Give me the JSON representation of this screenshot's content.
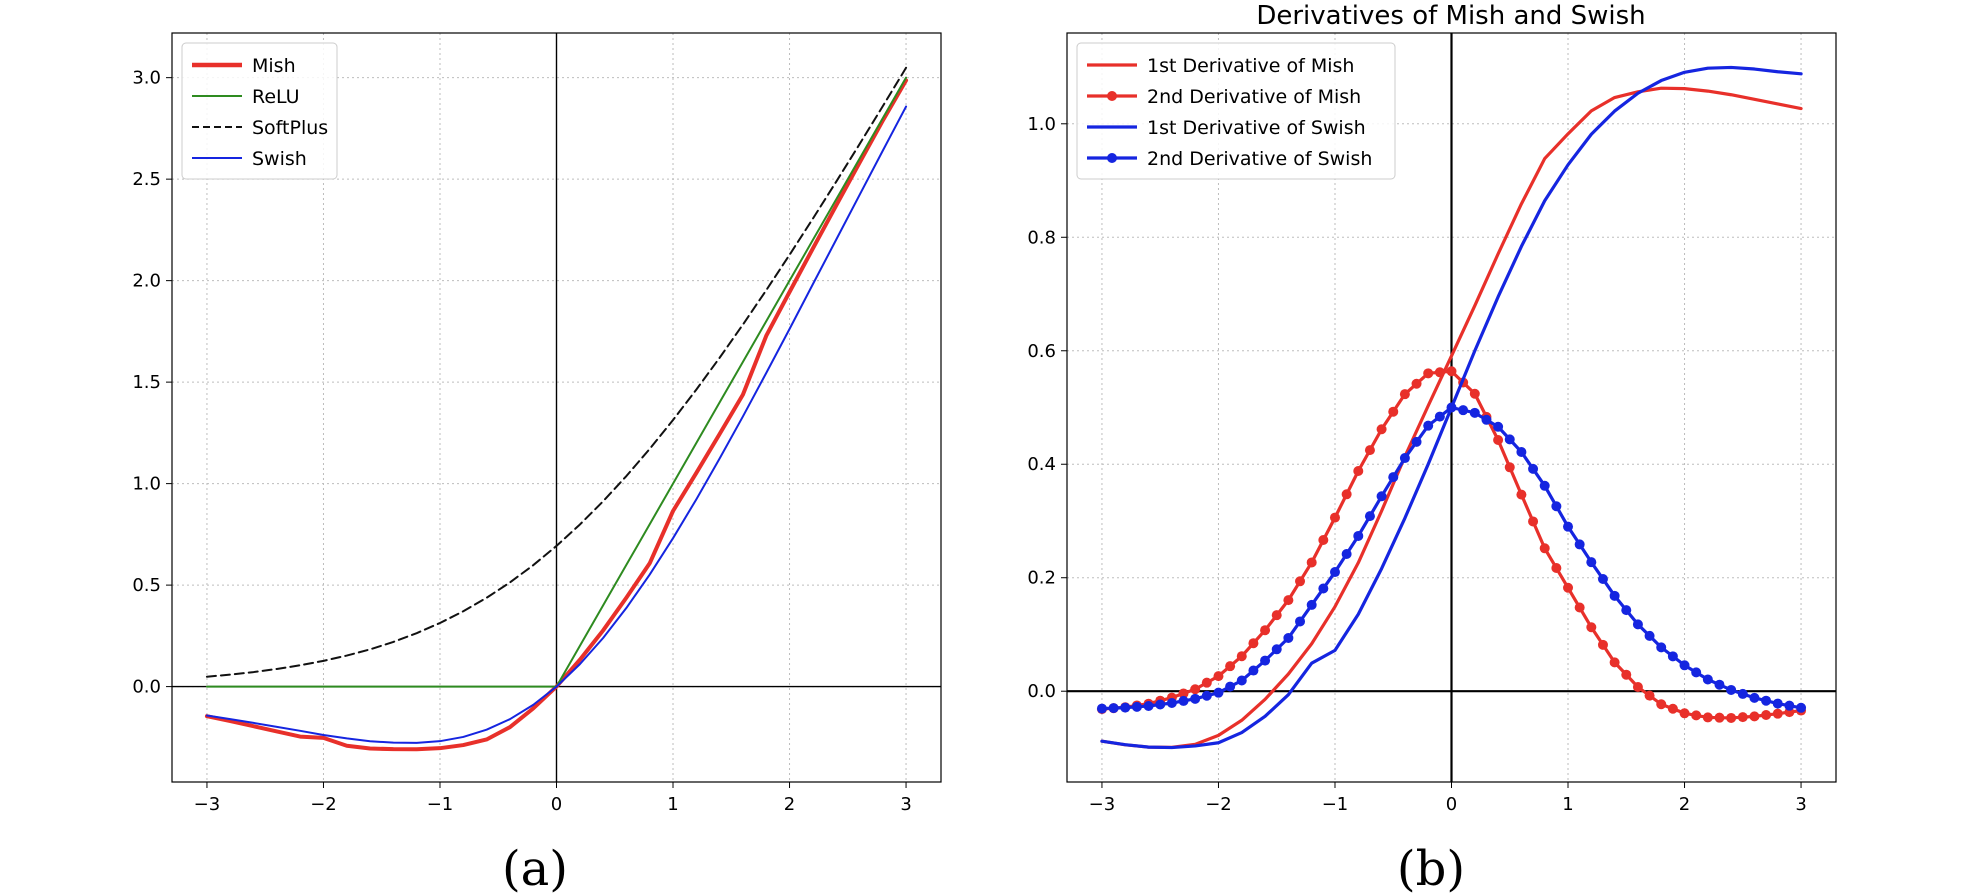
{
  "chart_data": [
    {
      "type": "line",
      "caption": "(a)",
      "title": "",
      "xlabel": "",
      "ylabel": "",
      "xlim": [
        -3.3,
        3.3
      ],
      "ylim": [
        -0.47,
        3.22
      ],
      "xticks": [
        -3,
        -2,
        -1,
        0,
        1,
        2,
        3
      ],
      "xtick_labels": [
        "−3",
        "−2",
        "−1",
        "0",
        "1",
        "2",
        "3"
      ],
      "yticks": [
        0.0,
        0.5,
        1.0,
        1.5,
        2.0,
        2.5,
        3.0
      ],
      "ytick_labels": [
        "0.0",
        "0.5",
        "1.0",
        "1.5",
        "2.0",
        "2.5",
        "3.0"
      ],
      "grid": true,
      "legend_position": "top-left",
      "x": [
        -3.0,
        -2.8,
        -2.6,
        -2.4,
        -2.2,
        -2.0,
        -1.8,
        -1.6,
        -1.4,
        -1.2,
        -1.0,
        -0.8,
        -0.6,
        -0.4,
        -0.2,
        0.0,
        0.2,
        0.4,
        0.6,
        0.8,
        1.0,
        1.2,
        1.4,
        1.6,
        1.8,
        2.0,
        2.2,
        2.4,
        2.6,
        2.8,
        3.0
      ],
      "series": [
        {
          "name": "Mish",
          "color": "#e8302a",
          "style": "solid",
          "weight": "thick",
          "values": [
            -0.1456,
            -0.1698,
            -0.1952,
            -0.221,
            -0.2462,
            -0.2525,
            -0.2914,
            -0.3049,
            -0.3083,
            -0.3088,
            -0.3034,
            -0.288,
            -0.2605,
            -0.1999,
            -0.1077,
            0.0,
            0.1317,
            0.2767,
            0.4384,
            0.6076,
            0.8651,
            1.0528,
            1.2444,
            1.4386,
            1.728,
            1.944,
            2.158,
            2.37,
            2.58,
            2.788,
            2.9865
          ]
        },
        {
          "name": "ReLU",
          "color": "#2e8b20",
          "style": "solid",
          "weight": "normal",
          "values": [
            0,
            0,
            0,
            0,
            0,
            0,
            0,
            0,
            0,
            0,
            0,
            0,
            0,
            0,
            0,
            0,
            0.2,
            0.4,
            0.6,
            0.8,
            1.0,
            1.2,
            1.4,
            1.6,
            1.8,
            2.0,
            2.2,
            2.4,
            2.6,
            2.8,
            3.0
          ]
        },
        {
          "name": "SoftPlus",
          "color": "#111111",
          "style": "dashed",
          "weight": "normal",
          "values": [
            0.0486,
            0.059,
            0.0716,
            0.0869,
            0.1051,
            0.1269,
            0.1528,
            0.1835,
            0.2201,
            0.2633,
            0.3133,
            0.3711,
            0.4375,
            0.513,
            0.5981,
            0.6931,
            0.7981,
            0.913,
            1.0375,
            1.1711,
            1.3133,
            1.4633,
            1.6201,
            1.7835,
            1.9528,
            2.1269,
            2.3051,
            2.4869,
            2.6716,
            2.859,
            3.0486
          ]
        },
        {
          "name": "Swish",
          "color": "#1525e0",
          "style": "solid",
          "weight": "normal",
          "values": [
            -0.1423,
            -0.1602,
            -0.1789,
            -0.1986,
            -0.2178,
            -0.2384,
            -0.2551,
            -0.269,
            -0.2762,
            -0.2775,
            -0.2689,
            -0.248,
            -0.2123,
            -0.1605,
            -0.09,
            0.0,
            0.11,
            0.2395,
            0.3877,
            0.552,
            0.7311,
            0.9225,
            1.1238,
            1.331,
            1.5449,
            1.7616,
            1.9822,
            2.2014,
            2.4211,
            2.6398,
            2.8577
          ]
        }
      ]
    },
    {
      "type": "line",
      "caption": "(b)",
      "title": "Derivatives of Mish and Swish",
      "xlabel": "",
      "ylabel": "",
      "xlim": [
        -3.3,
        3.3
      ],
      "ylim": [
        -0.16,
        1.16
      ],
      "xticks": [
        -3,
        -2,
        -1,
        0,
        1,
        2,
        3
      ],
      "xtick_labels": [
        "−3",
        "−2",
        "−1",
        "0",
        "1",
        "2",
        "3"
      ],
      "yticks": [
        0.0,
        0.2,
        0.4,
        0.6,
        0.8,
        1.0
      ],
      "ytick_labels": [
        "0.0",
        "0.2",
        "0.4",
        "0.6",
        "0.8",
        "1.0"
      ],
      "grid": true,
      "legend_position": "top-left",
      "x": [
        -3.0,
        -2.8,
        -2.6,
        -2.4,
        -2.2,
        -2.0,
        -1.8,
        -1.6,
        -1.4,
        -1.2,
        -1.0,
        -0.8,
        -0.6,
        -0.4,
        -0.2,
        0.0,
        0.2,
        0.4,
        0.6,
        0.8,
        1.0,
        1.2,
        1.4,
        1.6,
        1.8,
        2.0,
        2.2,
        2.4,
        2.6,
        2.8,
        3.0
      ],
      "series": [
        {
          "name": "1st Derivative of Mish",
          "color": "#e8302a",
          "markers": false,
          "values": [
            -0.0881,
            -0.0944,
            -0.0985,
            -0.099,
            -0.0936,
            -0.0778,
            -0.0512,
            -0.0143,
            0.0303,
            0.0836,
            0.149,
            0.2263,
            0.3176,
            0.4135,
            0.5031,
            0.5909,
            0.6795,
            0.7707,
            0.8589,
            0.9387,
            0.9823,
            1.0228,
            1.0463,
            1.0564,
            1.0627,
            1.062,
            1.0576,
            1.0512,
            1.0432,
            1.035,
            1.0269
          ]
        },
        {
          "name": "2nd Derivative of Mish",
          "color": "#e8302a",
          "markers": true,
          "values": [
            -0.0316,
            -0.0282,
            -0.022,
            -0.0114,
            0.0035,
            0.0266,
            0.0617,
            0.1075,
            0.1605,
            0.2269,
            0.306,
            0.3881,
            0.4617,
            0.5235,
            0.5602,
            0.5639,
            0.5242,
            0.4427,
            0.3465,
            0.2519,
            0.1823,
            0.1127,
            0.0508,
            0.0074,
            -0.023,
            -0.0389,
            -0.0462,
            -0.0471,
            -0.0443,
            -0.0396,
            -0.0341
          ]
        },
        {
          "name": "1st Derivative of Swish",
          "color": "#1525e0",
          "markers": false,
          "values": [
            -0.0881,
            -0.0942,
            -0.0985,
            -0.0993,
            -0.0964,
            -0.0908,
            -0.0729,
            -0.0443,
            -0.0061,
            0.0494,
            0.072,
            0.1357,
            0.2161,
            0.305,
            0.4001,
            0.5,
            0.5999,
            0.695,
            0.7839,
            0.8643,
            0.9277,
            0.9816,
            1.0224,
            1.0538,
            1.0762,
            1.0908,
            1.098,
            1.0993,
            1.0965,
            1.0917,
            1.0881
          ]
        },
        {
          "name": "2nd Derivative of Swish",
          "color": "#1525e0",
          "markers": true,
          "values": [
            -0.0306,
            -0.0289,
            -0.0261,
            -0.0208,
            -0.0134,
            -0.0026,
            0.0189,
            0.054,
            0.0938,
            0.1521,
            0.21,
            0.2736,
            0.3436,
            0.4109,
            0.468,
            0.5,
            0.4906,
            0.4661,
            0.4216,
            0.362,
            0.29,
            0.2274,
            0.1681,
            0.1178,
            0.0773,
            0.0457,
            0.0207,
            0.0022,
            -0.0117,
            -0.0218,
            -0.0292
          ]
        }
      ]
    }
  ]
}
